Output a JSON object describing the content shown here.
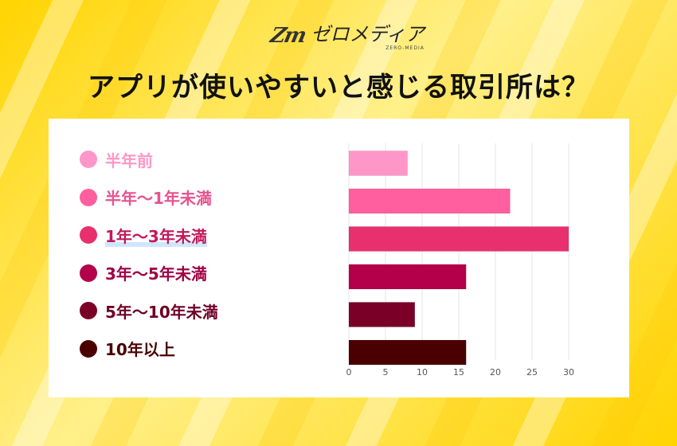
{
  "header": {
    "logo_mark": "Zm",
    "logo_text": "ゼロメディア",
    "logo_sub": "ZERO-MEDIA",
    "title": "アプリが使いやすいと感じる取引所は？"
  },
  "chart_data": {
    "type": "bar",
    "orientation": "horizontal",
    "title": "アプリが使いやすいと感じる取引所は？",
    "categories": [
      "半年前",
      "半年〜1年未満",
      "1年〜3年未満",
      "3年〜5年未満",
      "5年〜10年未満",
      "10年以上"
    ],
    "values": [
      8,
      22,
      30,
      16,
      9,
      16
    ],
    "colors": [
      "#ff96c8",
      "#ff5f9e",
      "#e8306f",
      "#b4004a",
      "#7a0028",
      "#4a0000"
    ],
    "label_colors": [
      "#ff96c8",
      "#e85290",
      "#c2185b",
      "#a00045",
      "#6e0025",
      "#4a0000"
    ],
    "xlim": [
      0,
      30
    ],
    "xticks": [
      "0",
      "5",
      "10",
      "15",
      "20",
      "25",
      "30"
    ],
    "grid": true,
    "legend_position": "left"
  }
}
